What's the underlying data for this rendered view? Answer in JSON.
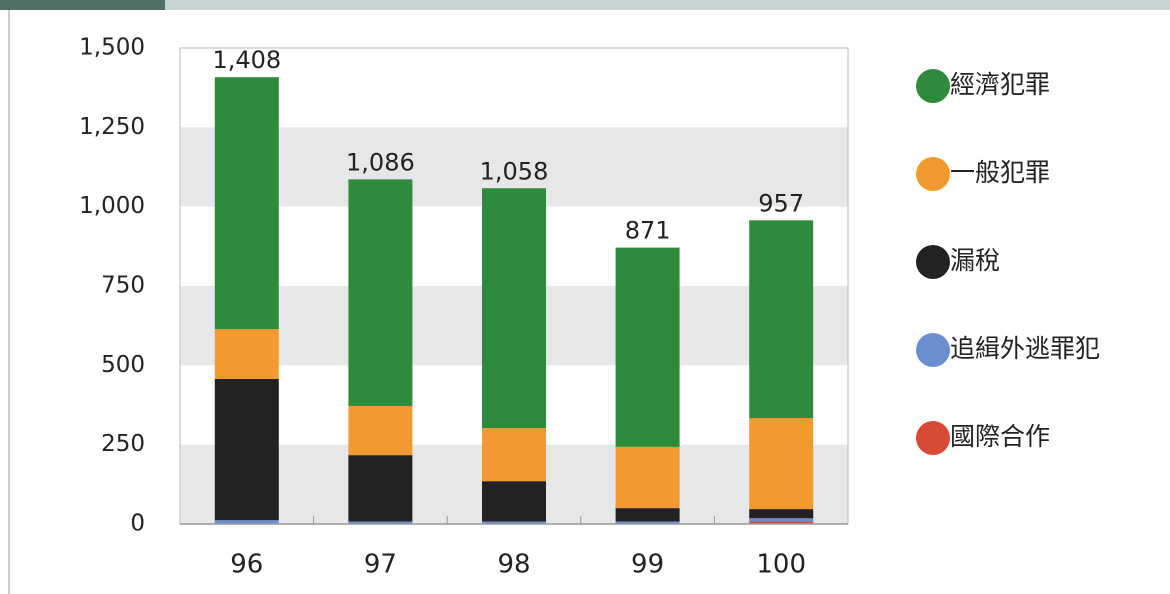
{
  "chart_data": {
    "type": "stacked_bar",
    "categories": [
      "96",
      "97",
      "98",
      "99",
      "100"
    ],
    "series": [
      {
        "name": "國際合作",
        "color": "#d94a36",
        "values": [
          0,
          0,
          0,
          0,
          8
        ]
      },
      {
        "name": "追緝外逃罪犯",
        "color": "#6a8fd0",
        "values": [
          12,
          8,
          8,
          8,
          10
        ]
      },
      {
        "name": "漏稅",
        "color": "#222124",
        "values": [
          445,
          209,
          127,
          42,
          29
        ]
      },
      {
        "name": "一般犯罪",
        "color": "#f29a30",
        "values": [
          157,
          155,
          167,
          193,
          287
        ]
      },
      {
        "name": "經濟犯罪",
        "color": "#2e8b3c",
        "values": [
          794,
          714,
          756,
          628,
          623
        ]
      }
    ],
    "totals": [
      1408,
      1086,
      1058,
      871,
      957
    ],
    "total_labels": [
      "1,408",
      "1,086",
      "1,058",
      "871",
      "957"
    ],
    "ylim": [
      0,
      1500
    ],
    "yticks": [
      0,
      250,
      500,
      750,
      {
        "value": 1000,
        "label": "1,000"
      },
      {
        "value": 1250,
        "label": "1,250"
      },
      {
        "value": 1500,
        "label": "1,500"
      }
    ],
    "grid": "bands",
    "legend": "right"
  }
}
